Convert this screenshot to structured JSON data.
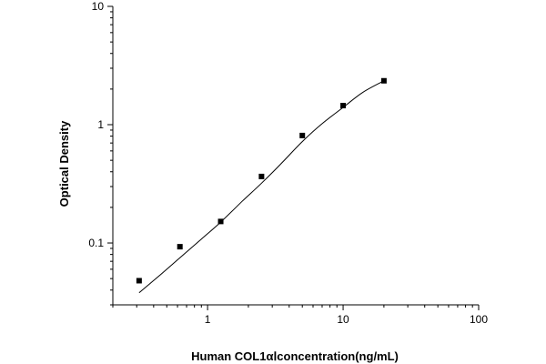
{
  "chart_data": {
    "type": "scatter",
    "xlabel": "Human COL1αⅠconcentration(ng/mL)",
    "ylabel": "Optical Density",
    "x_scale": "log",
    "y_scale": "log",
    "xlim": [
      0.2,
      100
    ],
    "ylim": [
      0.03,
      10
    ],
    "x_ticks": [
      {
        "value": 1,
        "label": "1"
      },
      {
        "value": 10,
        "label": "10"
      },
      {
        "value": 100,
        "label": "100"
      }
    ],
    "y_ticks": [
      {
        "value": 0.1,
        "label": "0.1"
      },
      {
        "value": 1,
        "label": "1"
      },
      {
        "value": 10,
        "label": "10"
      }
    ],
    "grid": false,
    "series": [
      {
        "x": [
          0.3125,
          0.625,
          1.25,
          2.5,
          5,
          10,
          20
        ],
        "y": [
          0.048,
          0.093,
          0.152,
          0.365,
          0.81,
          1.45,
          2.35
        ]
      }
    ],
    "fit_curve": {
      "x": [
        0.3125,
        0.45,
        0.625,
        0.9,
        1.25,
        1.8,
        2.5,
        3.5,
        5,
        7,
        10,
        14,
        20
      ],
      "y": [
        0.038,
        0.054,
        0.075,
        0.108,
        0.15,
        0.225,
        0.32,
        0.47,
        0.72,
        1.02,
        1.4,
        1.88,
        2.35
      ]
    }
  }
}
